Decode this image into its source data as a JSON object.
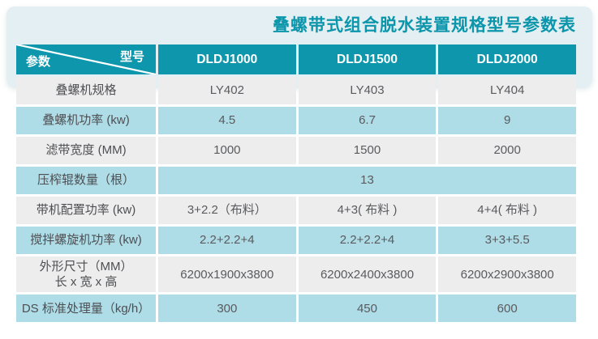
{
  "title": "叠螺带式组合脱水装置规格型号参数表",
  "colors": {
    "header_teal": "#0e96ac",
    "row_blue": "#aedce7",
    "row_gray": "#ededee",
    "band_background": "#e3eff2",
    "title_text": "#0c96ac",
    "header_text": "#ffffff",
    "cell_text": "#5a5b5e"
  },
  "table": {
    "corner": {
      "param_label": "参数",
      "model_label": "型号"
    },
    "columns": [
      "DLDJ1000",
      "DLDJ1500",
      "DLDJ2000"
    ],
    "rows": [
      {
        "label": "叠螺机规格",
        "shade": "gray",
        "values": [
          "LY402",
          "LY403",
          "LY404"
        ]
      },
      {
        "label": "叠螺机功率 (kw)",
        "shade": "blue",
        "values": [
          "4.5",
          "6.7",
          "9"
        ]
      },
      {
        "label": "滤带宽度 (MM)",
        "shade": "gray",
        "values": [
          "1000",
          "1500",
          "2000"
        ]
      },
      {
        "label": "压榨辊数量（根）",
        "shade": "blue",
        "span": 3,
        "values": [
          "13"
        ]
      },
      {
        "label": "带机配置功率 (kw)",
        "shade": "gray",
        "values": [
          "3+2.2（布料）",
          "4+3( 布料 )",
          "4+4( 布料 )"
        ]
      },
      {
        "label": "搅拌螺旋机功率 (kw)",
        "shade": "blue",
        "values": [
          "2.2+2.2+4",
          "2.2+2.2+4",
          "3+3+5.5"
        ]
      },
      {
        "label": "外形尺寸（MM）",
        "label_line2": "长 x 宽 x 高",
        "shade": "gray",
        "values": [
          "6200x1900x3800",
          "6200x2400x3800",
          "6200x2900x3800"
        ]
      },
      {
        "label": "DS 标准处理量（kg/h）",
        "shade": "blue",
        "values": [
          "300",
          "450",
          "600"
        ]
      }
    ]
  }
}
